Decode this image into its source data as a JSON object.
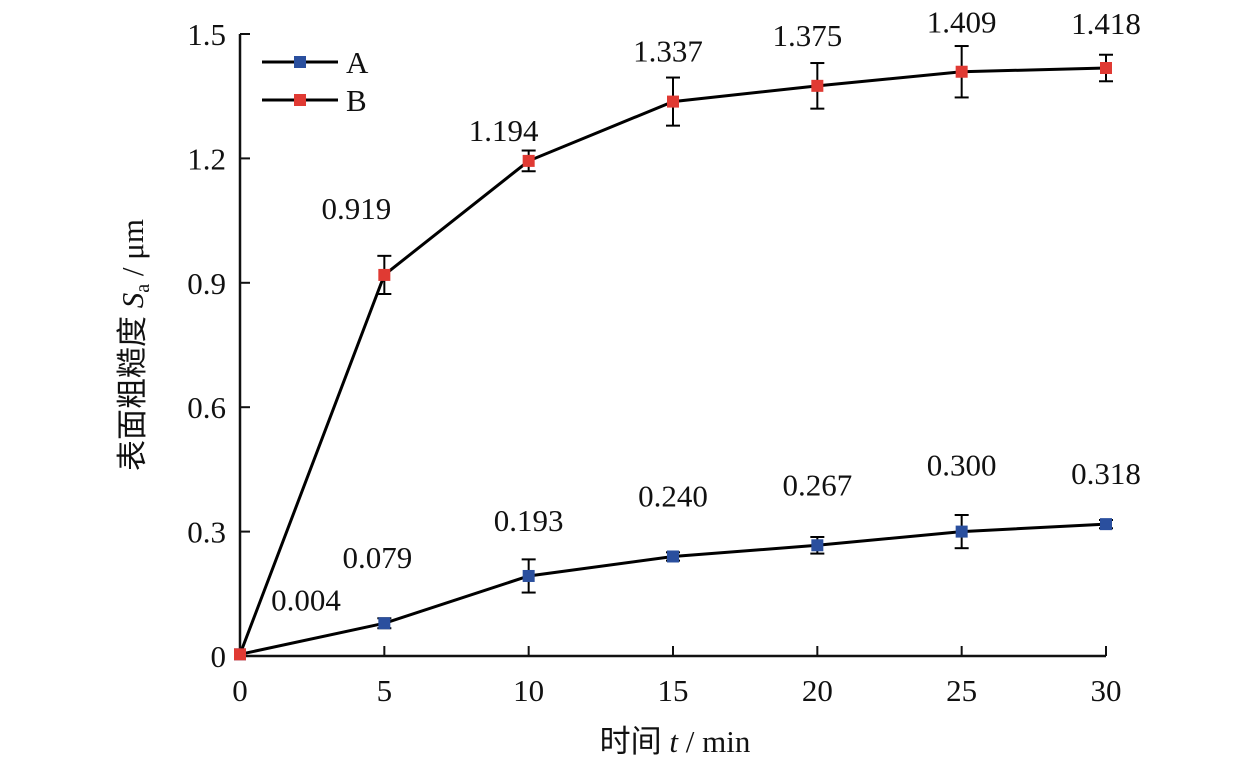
{
  "chart_data": {
    "type": "line",
    "title": "",
    "xlabel": "时间 t / min",
    "xlabel_parts": {
      "prefix": "时间 ",
      "var": "t",
      "suffix": " / min"
    },
    "ylabel": "表面粗糙度 Sa / μm",
    "ylabel_parts": {
      "prefix": "表面粗糙度 ",
      "var": "S",
      "sub": "a",
      "suffix": " / μm"
    },
    "xlim": [
      0,
      30
    ],
    "ylim": [
      0,
      1.5
    ],
    "xticks": [
      "0",
      "5",
      "10",
      "15",
      "20",
      "25",
      "30"
    ],
    "xtick_values": [
      0,
      5,
      10,
      15,
      20,
      25,
      30
    ],
    "yticks": [
      "0",
      "0.3",
      "0.6",
      "0.9",
      "1.2",
      "1.5"
    ],
    "ytick_values": [
      0,
      0.3,
      0.6,
      0.9,
      1.2,
      1.5
    ],
    "grid": false,
    "legend_position": "top-left",
    "x": [
      0,
      5,
      10,
      15,
      20,
      25,
      30
    ],
    "series": [
      {
        "name": "A",
        "color": "#2a4f9e",
        "values": [
          0.004,
          0.079,
          0.193,
          0.24,
          0.267,
          0.3,
          0.318
        ],
        "errors": [
          0,
          0.012,
          0.04,
          0.01,
          0.02,
          0.04,
          0.01
        ],
        "labels": [
          "0.004",
          "0.079",
          "0.193",
          "0.240",
          "0.267",
          "0.300",
          "0.318"
        ]
      },
      {
        "name": "B",
        "color": "#e03a33",
        "values": [
          0.004,
          0.919,
          1.194,
          1.337,
          1.375,
          1.409,
          1.418
        ],
        "errors": [
          0,
          0.046,
          0.025,
          0.058,
          0.055,
          0.062,
          0.032
        ],
        "labels": [
          "",
          "0.919",
          "1.194",
          "1.337",
          "1.375",
          "1.409",
          "1.418"
        ]
      }
    ]
  }
}
